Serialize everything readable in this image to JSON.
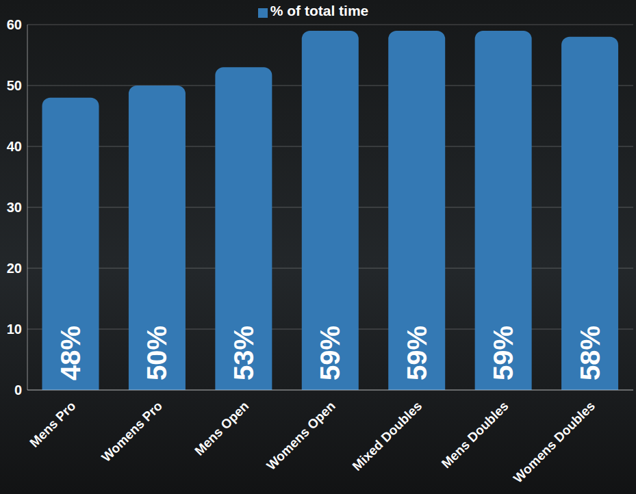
{
  "chart_data": {
    "type": "bar",
    "categories": [
      "Mens Pro",
      "Womens Pro",
      "Mens Open",
      "Womens Open",
      "Mixed Doubles",
      "Mens Doubles",
      "Womens Doubles"
    ],
    "series": [
      {
        "name": "% of total time",
        "color": "#3479b4",
        "values": [
          48,
          50,
          53,
          59,
          59,
          59,
          58
        ],
        "value_labels": [
          "48%",
          "50%",
          "53%",
          "59%",
          "59%",
          "59%",
          "58%"
        ]
      }
    ],
    "ylim": [
      0,
      60
    ],
    "yticks": [
      0,
      10,
      20,
      30,
      40,
      50,
      60
    ],
    "grid": true,
    "legend": "top",
    "data_labels": true
  }
}
